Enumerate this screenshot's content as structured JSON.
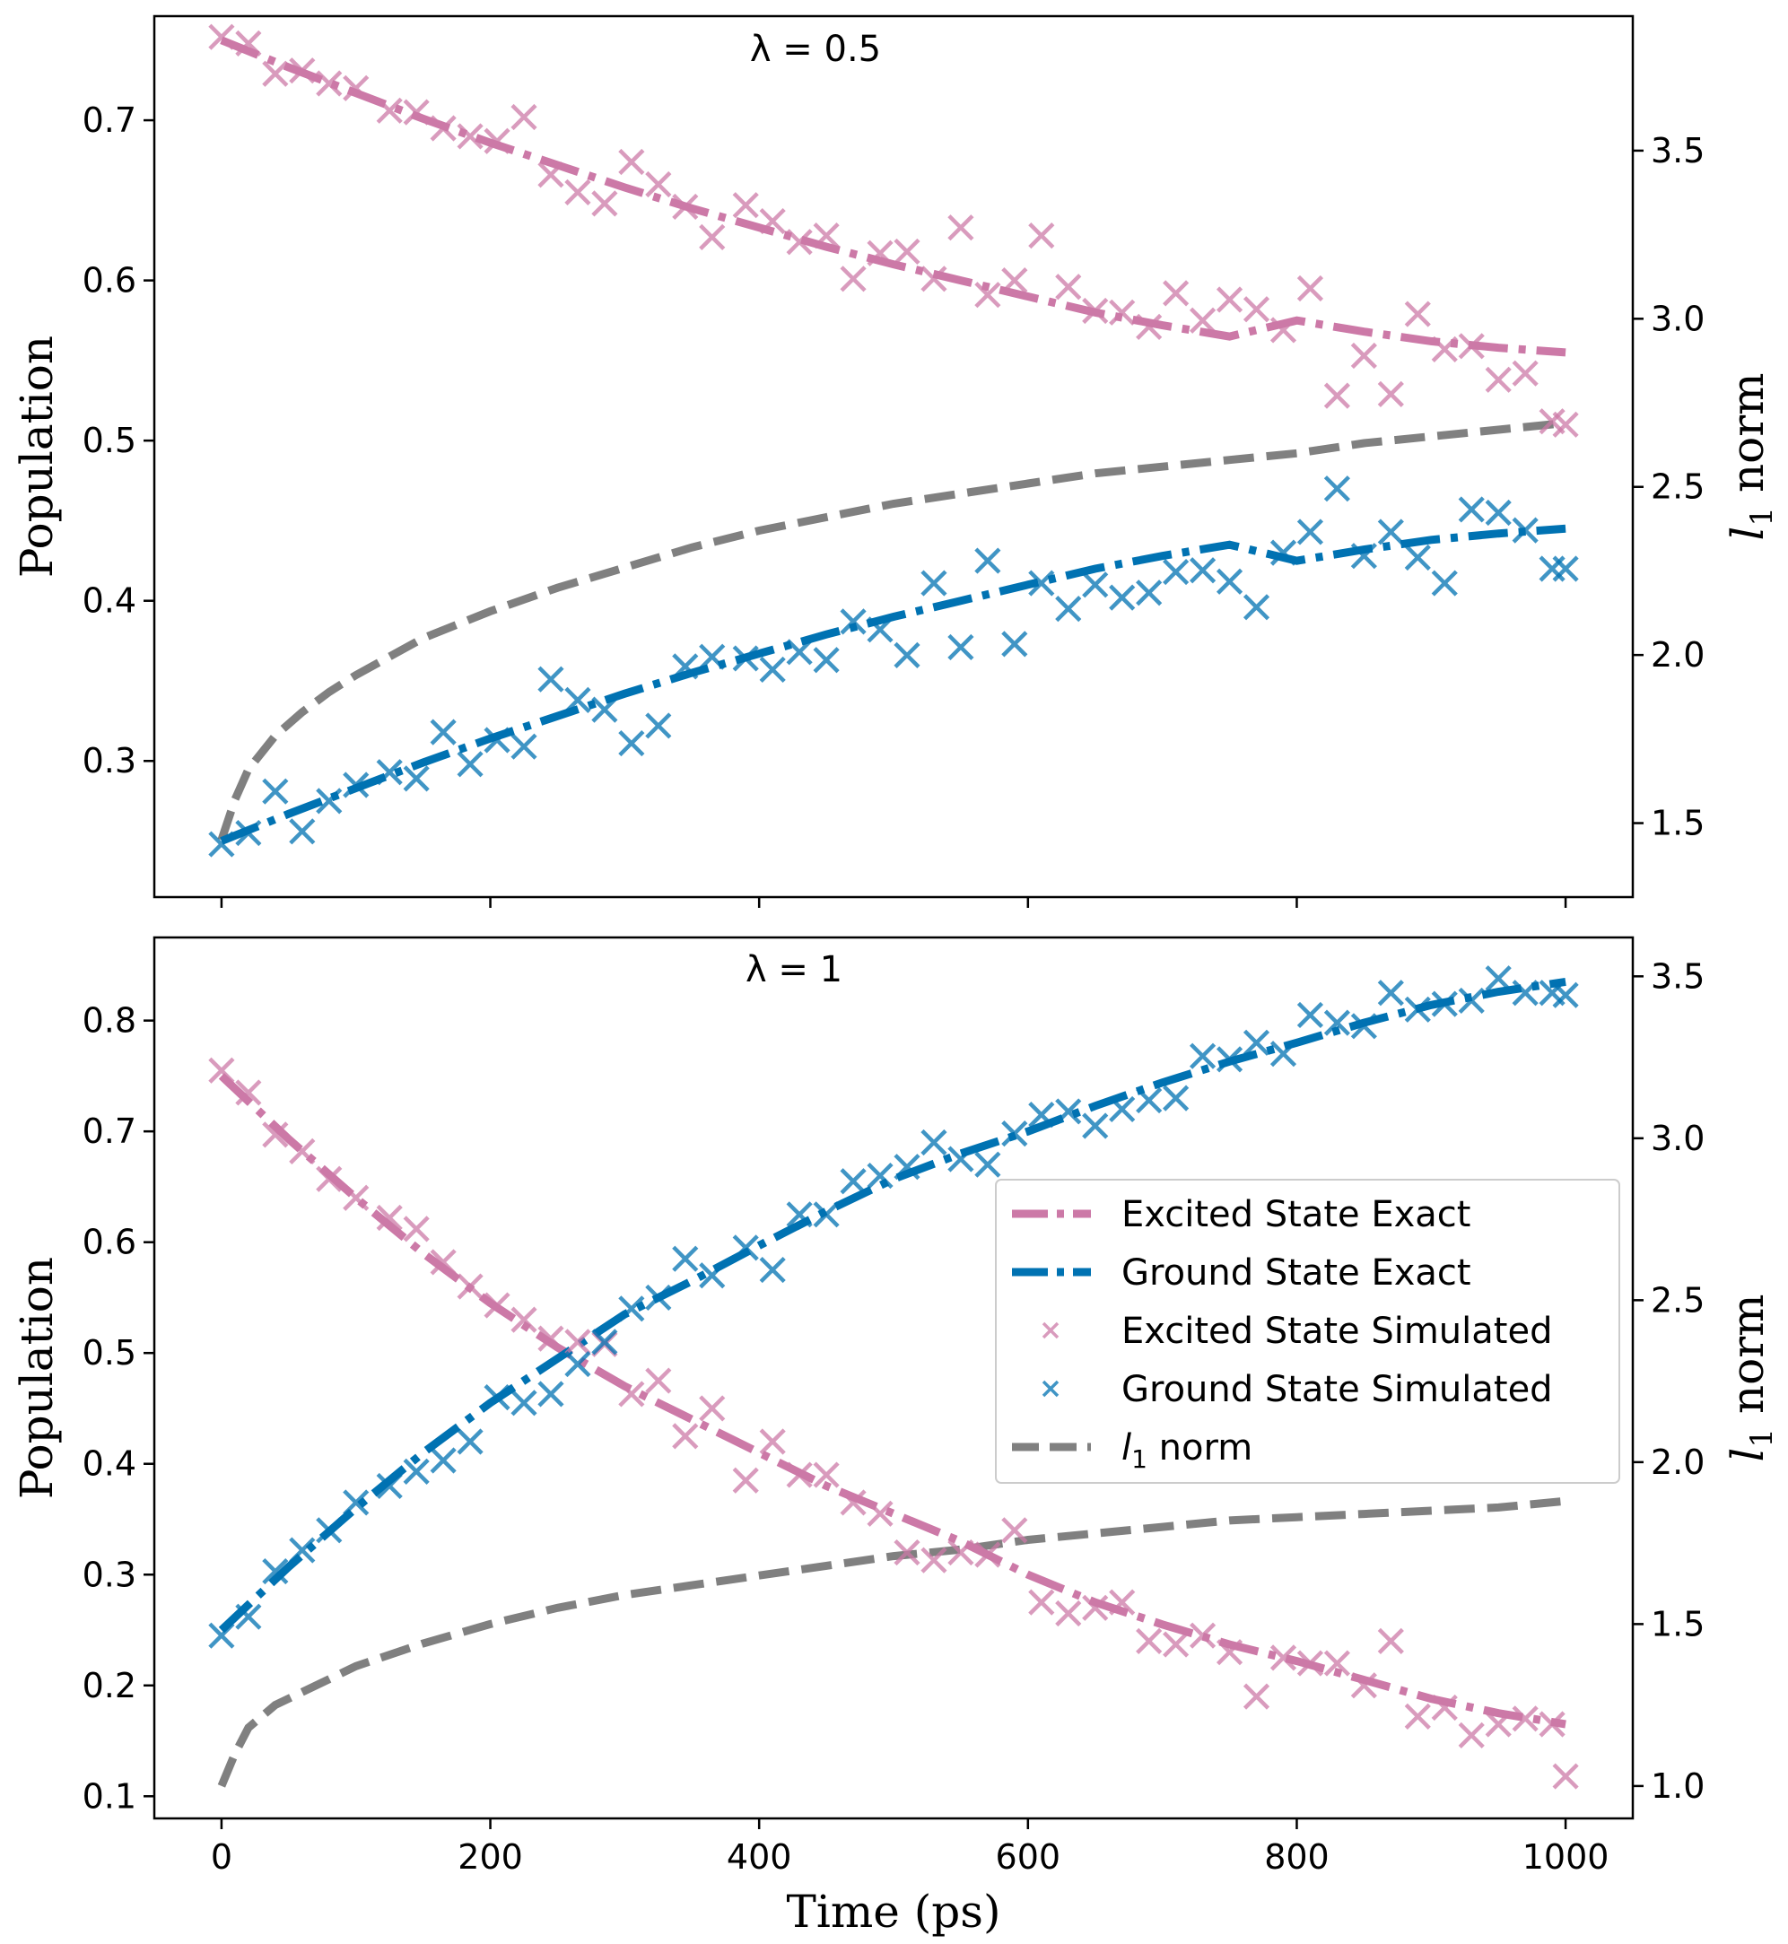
{
  "chart_data": [
    {
      "type": "line",
      "title": "λ = 0.5",
      "xlabel": "",
      "ylabel": "Population",
      "y2label": "l1 norm",
      "xlim": [
        -50,
        1050
      ],
      "ylim": [
        0.215,
        0.765
      ],
      "y2lim": [
        1.28,
        3.9
      ],
      "xticks": [
        "0",
        "200",
        "400",
        "600",
        "800",
        "1000"
      ],
      "yticks": [
        "0.3",
        "0.4",
        "0.5",
        "0.6",
        "0.7"
      ],
      "y2ticks": [
        "1.5",
        "2.0",
        "2.5",
        "3.0",
        "3.5"
      ],
      "series": [
        {
          "name": "Excited State Exact",
          "color": "#cc79a7",
          "style": "dashdot",
          "axis": "left",
          "x": [
            0,
            50,
            100,
            150,
            200,
            250,
            300,
            350,
            400,
            450,
            500,
            550,
            600,
            650,
            700,
            750,
            800,
            850,
            900,
            950,
            1000
          ],
          "y": [
            0.75,
            0.733,
            0.717,
            0.701,
            0.686,
            0.672,
            0.658,
            0.645,
            0.633,
            0.621,
            0.61,
            0.6,
            0.59,
            0.58,
            0.572,
            0.565,
            0.575,
            0.568,
            0.562,
            0.558,
            0.555
          ]
        },
        {
          "name": "Ground State Exact",
          "color": "#0072b2",
          "style": "dashdot",
          "axis": "left",
          "x": [
            0,
            50,
            100,
            150,
            200,
            250,
            300,
            350,
            400,
            450,
            500,
            550,
            600,
            650,
            700,
            750,
            800,
            850,
            900,
            950,
            1000
          ],
          "y": [
            0.25,
            0.267,
            0.283,
            0.299,
            0.314,
            0.328,
            0.342,
            0.355,
            0.367,
            0.379,
            0.39,
            0.4,
            0.41,
            0.42,
            0.428,
            0.435,
            0.425,
            0.432,
            0.438,
            0.442,
            0.445
          ]
        },
        {
          "name": "Excited State Simulated",
          "color": "#cc79a7",
          "style": "marker-x",
          "axis": "left",
          "x": [
            0,
            20,
            40,
            60,
            80,
            100,
            125,
            145,
            165,
            185,
            205,
            225,
            245,
            265,
            285,
            305,
            325,
            345,
            365,
            390,
            410,
            430,
            450,
            470,
            490,
            510,
            530,
            550,
            570,
            590,
            610,
            630,
            650,
            670,
            690,
            710,
            730,
            750,
            770,
            790,
            810,
            830,
            850,
            870,
            890,
            910,
            930,
            950,
            970,
            990,
            1000
          ],
          "y": [
            0.752,
            0.748,
            0.729,
            0.731,
            0.723,
            0.72,
            0.706,
            0.705,
            0.695,
            0.69,
            0.687,
            0.702,
            0.666,
            0.655,
            0.648,
            0.674,
            0.66,
            0.646,
            0.627,
            0.647,
            0.637,
            0.624,
            0.628,
            0.601,
            0.617,
            0.618,
            0.601,
            0.633,
            0.591,
            0.6,
            0.628,
            0.596,
            0.581,
            0.58,
            0.571,
            0.592,
            0.575,
            0.588,
            0.582,
            0.569,
            0.595,
            0.528,
            0.553,
            0.529,
            0.579,
            0.557,
            0.559,
            0.538,
            0.542,
            0.512,
            0.51
          ]
        },
        {
          "name": "Ground State Simulated",
          "color": "#0072b2",
          "style": "marker-x",
          "axis": "left",
          "x": [
            0,
            20,
            40,
            60,
            80,
            100,
            125,
            145,
            165,
            185,
            205,
            225,
            245,
            265,
            285,
            305,
            325,
            345,
            365,
            390,
            410,
            430,
            450,
            470,
            490,
            510,
            530,
            550,
            570,
            590,
            610,
            630,
            650,
            670,
            690,
            710,
            730,
            750,
            770,
            790,
            810,
            830,
            850,
            870,
            890,
            910,
            930,
            950,
            970,
            990,
            1000
          ],
          "y": [
            0.248,
            0.255,
            0.281,
            0.256,
            0.275,
            0.285,
            0.293,
            0.289,
            0.318,
            0.298,
            0.313,
            0.309,
            0.351,
            0.338,
            0.332,
            0.311,
            0.322,
            0.359,
            0.365,
            0.364,
            0.357,
            0.368,
            0.363,
            0.387,
            0.382,
            0.366,
            0.411,
            0.371,
            0.425,
            0.373,
            0.411,
            0.395,
            0.41,
            0.402,
            0.405,
            0.418,
            0.419,
            0.412,
            0.396,
            0.43,
            0.443,
            0.47,
            0.428,
            0.443,
            0.427,
            0.411,
            0.457,
            0.455,
            0.444,
            0.42,
            0.42
          ]
        },
        {
          "name": "l1 norm",
          "color": "#808080",
          "style": "dashed",
          "axis": "right",
          "x": [
            0,
            10,
            20,
            40,
            60,
            80,
            100,
            150,
            200,
            250,
            300,
            350,
            400,
            450,
            500,
            550,
            600,
            650,
            700,
            750,
            800,
            850,
            900,
            950,
            1000
          ],
          "y": [
            1.45,
            1.57,
            1.66,
            1.76,
            1.83,
            1.89,
            1.94,
            2.05,
            2.13,
            2.2,
            2.26,
            2.32,
            2.37,
            2.41,
            2.45,
            2.48,
            2.51,
            2.54,
            2.56,
            2.58,
            2.6,
            2.63,
            2.65,
            2.67,
            2.69
          ]
        }
      ]
    },
    {
      "type": "line",
      "title": "λ = 1",
      "xlabel": "Time (ps)",
      "ylabel": "Population",
      "y2label": "l1 norm",
      "xlim": [
        -50,
        1050
      ],
      "ylim": [
        0.08,
        0.875
      ],
      "y2lim": [
        0.9,
        3.62
      ],
      "xticks": [
        "0",
        "200",
        "400",
        "600",
        "800",
        "1000"
      ],
      "yticks": [
        "0.1",
        "0.2",
        "0.3",
        "0.4",
        "0.5",
        "0.6",
        "0.7",
        "0.8"
      ],
      "y2ticks": [
        "1.0",
        "1.5",
        "2.0",
        "2.5",
        "3.0",
        "3.5"
      ],
      "legend": {
        "position": "center-right"
      },
      "series": [
        {
          "name": "Excited State Exact",
          "color": "#cc79a7",
          "style": "dashdot",
          "axis": "left",
          "x": [
            0,
            50,
            100,
            150,
            200,
            250,
            300,
            350,
            400,
            450,
            500,
            550,
            600,
            650,
            700,
            750,
            800,
            850,
            900,
            950,
            1000
          ],
          "y": [
            0.75,
            0.693,
            0.64,
            0.59,
            0.545,
            0.505,
            0.47,
            0.44,
            0.41,
            0.38,
            0.355,
            0.33,
            0.3,
            0.275,
            0.255,
            0.237,
            0.222,
            0.205,
            0.188,
            0.175,
            0.165
          ]
        },
        {
          "name": "Ground State Exact",
          "color": "#0072b2",
          "style": "dashdot",
          "axis": "left",
          "x": [
            0,
            50,
            100,
            150,
            200,
            250,
            300,
            350,
            400,
            450,
            500,
            550,
            600,
            650,
            700,
            750,
            800,
            850,
            900,
            950,
            1000
          ],
          "y": [
            0.25,
            0.307,
            0.36,
            0.41,
            0.455,
            0.495,
            0.535,
            0.565,
            0.597,
            0.628,
            0.657,
            0.68,
            0.7,
            0.723,
            0.744,
            0.763,
            0.78,
            0.798,
            0.814,
            0.826,
            0.835
          ]
        },
        {
          "name": "Excited State Simulated",
          "color": "#cc79a7",
          "style": "marker-x",
          "axis": "left",
          "x": [
            0,
            20,
            40,
            60,
            80,
            100,
            125,
            145,
            165,
            185,
            205,
            225,
            245,
            265,
            285,
            305,
            325,
            345,
            365,
            390,
            410,
            430,
            450,
            470,
            490,
            510,
            530,
            550,
            570,
            590,
            610,
            630,
            650,
            670,
            690,
            710,
            730,
            750,
            770,
            790,
            810,
            830,
            850,
            870,
            890,
            910,
            930,
            950,
            970,
            990,
            1000
          ],
          "y": [
            0.755,
            0.735,
            0.697,
            0.682,
            0.657,
            0.64,
            0.622,
            0.612,
            0.582,
            0.56,
            0.543,
            0.53,
            0.513,
            0.51,
            0.508,
            0.463,
            0.475,
            0.425,
            0.45,
            0.385,
            0.42,
            0.39,
            0.39,
            0.365,
            0.355,
            0.32,
            0.313,
            0.32,
            0.318,
            0.34,
            0.275,
            0.265,
            0.27,
            0.275,
            0.24,
            0.237,
            0.245,
            0.23,
            0.19,
            0.225,
            0.22,
            0.22,
            0.2,
            0.24,
            0.172,
            0.18,
            0.155,
            0.165,
            0.17,
            0.165,
            0.118
          ]
        },
        {
          "name": "Ground State Simulated",
          "color": "#0072b2",
          "style": "marker-x",
          "axis": "left",
          "x": [
            0,
            20,
            40,
            60,
            80,
            100,
            125,
            145,
            165,
            185,
            205,
            225,
            245,
            265,
            285,
            305,
            325,
            345,
            365,
            390,
            410,
            430,
            450,
            470,
            490,
            510,
            530,
            550,
            570,
            590,
            610,
            630,
            650,
            670,
            690,
            710,
            730,
            750,
            770,
            790,
            810,
            830,
            850,
            870,
            890,
            910,
            930,
            950,
            970,
            990,
            1000
          ],
          "y": [
            0.245,
            0.262,
            0.303,
            0.322,
            0.34,
            0.365,
            0.38,
            0.393,
            0.403,
            0.42,
            0.46,
            0.455,
            0.463,
            0.49,
            0.51,
            0.54,
            0.55,
            0.585,
            0.57,
            0.595,
            0.575,
            0.625,
            0.625,
            0.655,
            0.66,
            0.668,
            0.69,
            0.675,
            0.67,
            0.698,
            0.715,
            0.718,
            0.705,
            0.72,
            0.728,
            0.73,
            0.768,
            0.765,
            0.78,
            0.77,
            0.805,
            0.798,
            0.795,
            0.825,
            0.81,
            0.815,
            0.818,
            0.838,
            0.825,
            0.825,
            0.823
          ]
        },
        {
          "name": "l1 norm",
          "color": "#808080",
          "style": "dashed",
          "axis": "right",
          "x": [
            0,
            10,
            20,
            40,
            60,
            80,
            100,
            150,
            200,
            250,
            300,
            350,
            400,
            450,
            500,
            550,
            600,
            650,
            700,
            750,
            800,
            850,
            900,
            950,
            1000
          ],
          "y": [
            1.0,
            1.1,
            1.18,
            1.25,
            1.29,
            1.33,
            1.37,
            1.44,
            1.5,
            1.55,
            1.59,
            1.62,
            1.65,
            1.68,
            1.71,
            1.73,
            1.76,
            1.78,
            1.8,
            1.82,
            1.83,
            1.84,
            1.85,
            1.86,
            1.88
          ]
        }
      ]
    }
  ]
}
